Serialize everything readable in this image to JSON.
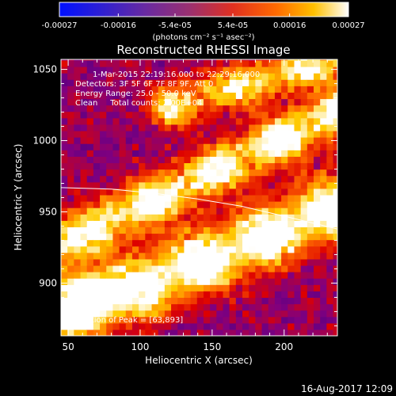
{
  "colorbar": {
    "tick_labels": [
      "-0.00027",
      "-0.00016",
      "-5.4e-05",
      "5.4e-05",
      "0.00016",
      "0.00027"
    ],
    "tick_values": [
      -0.00027,
      -0.00016,
      -5.4e-05,
      5.4e-05,
      0.00016,
      0.00027
    ],
    "range": [
      -0.00027,
      0.00027
    ],
    "units_label": "(photons cm⁻² s⁻¹ asec⁻²)"
  },
  "chart_data": {
    "type": "heatmap",
    "title": "Reconstructed RHESSI Image",
    "xlabel": "Heliocentric X (arcsec)",
    "ylabel": "Heliocentric Y (arcsec)",
    "xlim": [
      45,
      237
    ],
    "ylim": [
      863,
      1057
    ],
    "x_ticks": [
      50,
      100,
      150,
      200
    ],
    "y_ticks": [
      900,
      950,
      1000,
      1050
    ],
    "annotations": [
      "1-Mar-2015 22:19:16.000 to 22:29:16.000",
      "Detectors: 3F 5F 6F 7F 8F 9F, Att 0",
      "Energy Range: 25.0 - 50.0 keV",
      "Clean     Total counts: 2.00E+04"
    ],
    "peak_label": "Position of Peak = [63,893]",
    "peak": [
      63,
      893
    ],
    "limb_curve": [
      [
        45,
        967
      ],
      [
        80,
        966
      ],
      [
        110,
        963
      ],
      [
        140,
        959
      ],
      [
        170,
        954
      ],
      [
        200,
        947
      ],
      [
        237,
        938
      ]
    ],
    "ridges": [
      {
        "start": [
          45,
          876
        ],
        "end": [
          237,
          953
        ],
        "intensity": 1.0,
        "width_arcsec": 15
      },
      {
        "start": [
          45,
          927
        ],
        "end": [
          237,
          1020
        ],
        "intensity": 0.85,
        "width_arcsec": 12
      },
      {
        "start": [
          120,
          1025
        ],
        "end": [
          237,
          1057
        ],
        "intensity": 0.7,
        "width_arcsec": 10
      }
    ],
    "colormap": [
      "#0000ff",
      "#4b0082",
      "#800080",
      "#dd0000",
      "#ff6a00",
      "#ffcc00",
      "#ffffff"
    ]
  },
  "timestamp": "16-Aug-2017 12:09"
}
